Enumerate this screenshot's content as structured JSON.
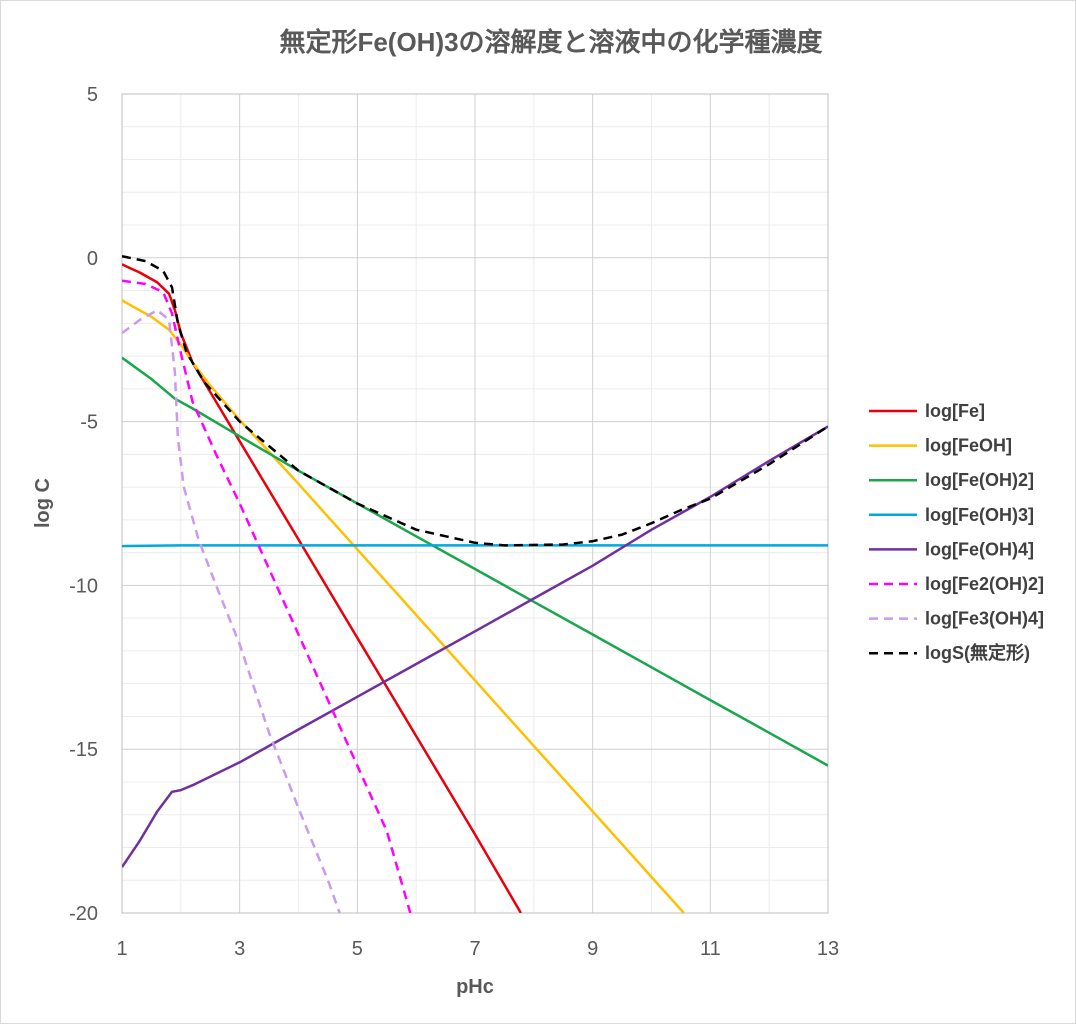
{
  "chart_data": {
    "type": "line",
    "title": "無定形Fe(OH)3の溶解度と溶液中の化学種濃度",
    "xlabel": "pHc",
    "ylabel": "log C",
    "xlim": [
      1,
      13
    ],
    "ylim": [
      -20,
      5
    ],
    "x_ticks": [
      1,
      3,
      5,
      7,
      9,
      11,
      13
    ],
    "y_ticks": [
      5,
      0,
      -5,
      -10,
      -15,
      -20
    ],
    "x_tick_labels": [
      "1",
      "3",
      "5",
      "7",
      "9",
      "11",
      "13"
    ],
    "y_tick_labels": [
      "5",
      "0",
      "-5",
      "-10",
      "-15",
      "-20"
    ],
    "grid": "major and minor",
    "legend_position": "right",
    "series": [
      {
        "name": "log[Fe]",
        "color": "#e8000b",
        "dash": "solid",
        "points": [
          [
            1,
            -0.2
          ],
          [
            1.3,
            -0.45
          ],
          [
            1.6,
            -0.75
          ],
          [
            1.8,
            -1.1
          ],
          [
            1.9,
            -1.6
          ],
          [
            2.0,
            -2.3
          ],
          [
            2.2,
            -3.2
          ],
          [
            2.5,
            -4.1
          ],
          [
            3,
            -5.6
          ],
          [
            4,
            -8.6
          ],
          [
            5,
            -11.6
          ],
          [
            6,
            -14.6
          ],
          [
            7,
            -17.6
          ],
          [
            7.78,
            -20
          ]
        ]
      },
      {
        "name": "log[FeOH]",
        "color": "#ffc000",
        "dash": "solid",
        "points": [
          [
            1,
            -1.3
          ],
          [
            1.5,
            -1.8
          ],
          [
            1.8,
            -2.2
          ],
          [
            2.0,
            -2.65
          ],
          [
            2.2,
            -3.2
          ],
          [
            2.5,
            -3.9
          ],
          [
            3,
            -4.95
          ],
          [
            4,
            -6.9
          ],
          [
            5,
            -8.9
          ],
          [
            6,
            -10.9
          ],
          [
            7,
            -12.9
          ],
          [
            8,
            -14.9
          ],
          [
            9,
            -16.9
          ],
          [
            10,
            -18.9
          ],
          [
            10.55,
            -20
          ]
        ]
      },
      {
        "name": "log[Fe(OH)2]",
        "color": "#1aa64a",
        "dash": "solid",
        "points": [
          [
            1,
            -3.05
          ],
          [
            1.5,
            -3.7
          ],
          [
            1.9,
            -4.3
          ],
          [
            2.2,
            -4.6
          ],
          [
            3,
            -5.45
          ],
          [
            4,
            -6.5
          ],
          [
            5,
            -7.5
          ],
          [
            6,
            -8.5
          ],
          [
            7,
            -9.5
          ],
          [
            8,
            -10.5
          ],
          [
            9,
            -11.5
          ],
          [
            10,
            -12.5
          ],
          [
            11,
            -13.5
          ],
          [
            12,
            -14.5
          ],
          [
            13,
            -15.5
          ]
        ]
      },
      {
        "name": "log[Fe(OH)3]",
        "color": "#00a8e0",
        "dash": "solid",
        "points": [
          [
            1,
            -8.8
          ],
          [
            2,
            -8.78
          ],
          [
            13,
            -8.78
          ]
        ]
      },
      {
        "name": "log[Fe(OH)4]",
        "color": "#7030a0",
        "dash": "solid",
        "points": [
          [
            1,
            -18.6
          ],
          [
            1.3,
            -17.8
          ],
          [
            1.6,
            -16.9
          ],
          [
            1.85,
            -16.3
          ],
          [
            2,
            -16.25
          ],
          [
            2.2,
            -16.1
          ],
          [
            3,
            -15.4
          ],
          [
            4,
            -14.4
          ],
          [
            5,
            -13.4
          ],
          [
            6,
            -12.4
          ],
          [
            7,
            -11.4
          ],
          [
            8,
            -10.4
          ],
          [
            9,
            -9.4
          ],
          [
            10,
            -8.3
          ],
          [
            11,
            -7.3
          ],
          [
            12,
            -6.2
          ],
          [
            13,
            -5.15
          ]
        ]
      },
      {
        "name": "log[Fe2(OH)2]",
        "color": "#ff00ff",
        "dash": "dash",
        "points": [
          [
            1,
            -0.7
          ],
          [
            1.4,
            -0.8
          ],
          [
            1.7,
            -1.05
          ],
          [
            1.85,
            -1.7
          ],
          [
            2.0,
            -2.9
          ],
          [
            2.2,
            -4.4
          ],
          [
            2.6,
            -6.0
          ],
          [
            3,
            -7.5
          ],
          [
            3.5,
            -9.5
          ],
          [
            4,
            -11.5
          ],
          [
            4.5,
            -13.5
          ],
          [
            5,
            -15.5
          ],
          [
            5.5,
            -17.5
          ],
          [
            5.9,
            -20
          ]
        ]
      },
      {
        "name": "log[Fe3(OH)4]",
        "color": "#c99bf0",
        "dash": "dash",
        "points": [
          [
            1,
            -2.3
          ],
          [
            1.3,
            -1.9
          ],
          [
            1.6,
            -1.6
          ],
          [
            1.8,
            -1.9
          ],
          [
            1.9,
            -3.5
          ],
          [
            1.95,
            -5.5
          ],
          [
            2.05,
            -7.0
          ],
          [
            2.3,
            -8.6
          ],
          [
            2.6,
            -10.0
          ],
          [
            3,
            -11.8
          ],
          [
            3.5,
            -14.5
          ],
          [
            4,
            -16.8
          ],
          [
            4.5,
            -19.0
          ],
          [
            4.7,
            -20
          ]
        ]
      },
      {
        "name": "logS(無定形)",
        "color": "#000000",
        "dash": "dash",
        "points": [
          [
            1,
            0.05
          ],
          [
            1.4,
            -0.1
          ],
          [
            1.7,
            -0.4
          ],
          [
            1.85,
            -0.9
          ],
          [
            1.95,
            -2.0
          ],
          [
            2.1,
            -2.9
          ],
          [
            2.4,
            -3.8
          ],
          [
            3,
            -5.0
          ],
          [
            4,
            -6.5
          ],
          [
            5,
            -7.5
          ],
          [
            6,
            -8.3
          ],
          [
            7,
            -8.7
          ],
          [
            7.5,
            -8.78
          ],
          [
            8.5,
            -8.75
          ],
          [
            9,
            -8.65
          ],
          [
            9.5,
            -8.45
          ],
          [
            10,
            -8.1
          ],
          [
            10.5,
            -7.7
          ],
          [
            11,
            -7.35
          ],
          [
            12,
            -6.3
          ],
          [
            13,
            -5.15
          ]
        ]
      }
    ]
  }
}
